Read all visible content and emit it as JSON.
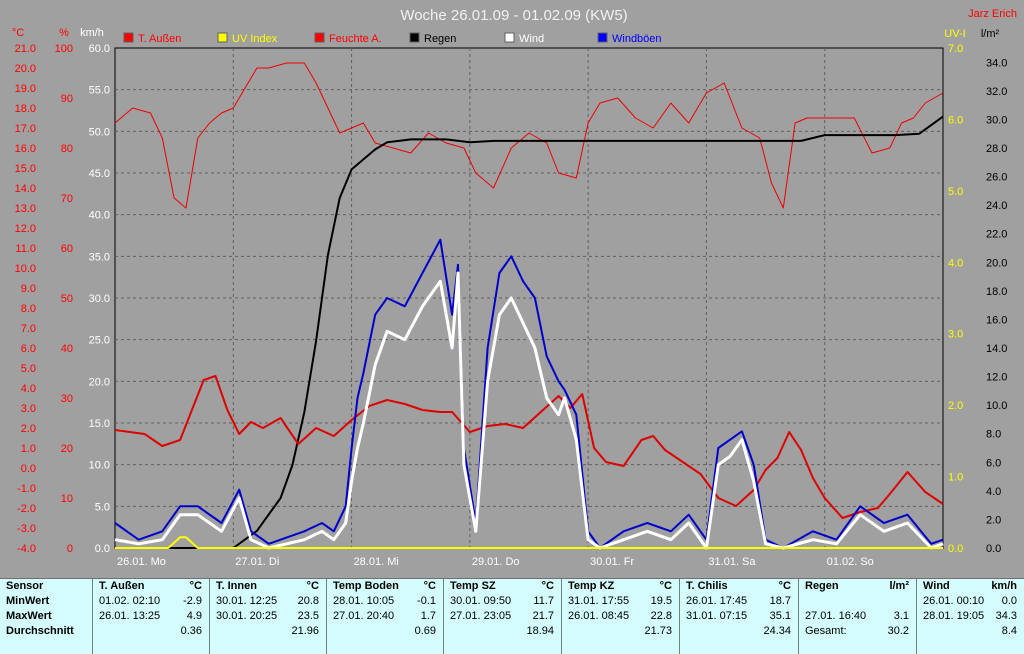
{
  "title": "Woche 26.01.09 - 01.02.09 (KW5)",
  "author": "Jarz Erich",
  "axis_units": {
    "temp": "°C",
    "humidity": "%",
    "wind": "km/h",
    "uv": "UV-I",
    "rain": "l/m²"
  },
  "legend": [
    {
      "label": "T. Außen",
      "color": "#ff0000"
    },
    {
      "label": "UV Index",
      "color": "#ffff00"
    },
    {
      "label": "Feuchte A.",
      "color": "#ff0000"
    },
    {
      "label": "Regen",
      "color": "#000000"
    },
    {
      "label": "Wind",
      "color": "#ffffff"
    },
    {
      "label": "Windböen",
      "color": "#0000ff"
    }
  ],
  "colors": {
    "temp": "#dd0000",
    "humidity": "#ee0000",
    "rain": "#000000",
    "wind": "#ffffff",
    "gust": "#0000cc",
    "uv": "#ffff00",
    "bg": "#a0a0a0",
    "table": "#d4fcfc"
  },
  "chart_data": {
    "type": "line",
    "title": "Woche 26.01.09 - 01.02.09 (KW5)",
    "x_ticks": [
      "26.01. Mo",
      "27.01. Di",
      "28.01. Mi",
      "29.01. Do",
      "30.01. Fr",
      "31.01. Sa",
      "01.02. So"
    ],
    "x_range_days": [
      0,
      7
    ],
    "axes": {
      "temp_c": {
        "range": [
          -4.0,
          21.0
        ],
        "ticks": [
          "21.0",
          "20.0",
          "19.0",
          "18.0",
          "17.0",
          "16.0",
          "15.0",
          "14.0",
          "13.0",
          "12.0",
          "11.0",
          "10.0",
          "9.0",
          "8.0",
          "7.0",
          "6.0",
          "5.0",
          "4.0",
          "3.0",
          "2.0",
          "1.0",
          "0.0",
          "-1.0",
          "-2.0",
          "-3.0",
          "-4.0"
        ]
      },
      "humidity_pct": {
        "range": [
          0,
          100
        ],
        "ticks": [
          "100",
          "90",
          "80",
          "70",
          "60",
          "50",
          "40",
          "30",
          "20",
          "10",
          "0"
        ]
      },
      "wind_kmh": {
        "range": [
          0.0,
          60.0
        ],
        "ticks": [
          "60.0",
          "55.0",
          "50.0",
          "45.0",
          "40.0",
          "35.0",
          "30.0",
          "25.0",
          "20.0",
          "15.0",
          "10.0",
          "5.0",
          "0.0"
        ]
      },
      "uv_index": {
        "range": [
          0.0,
          7.0
        ],
        "ticks": [
          "7.0",
          "6.0",
          "5.0",
          "4.0",
          "3.0",
          "2.0",
          "1.0",
          "0.0"
        ]
      },
      "rain_lm2": {
        "range": [
          0.0,
          35.0
        ],
        "ticks": [
          "34.0",
          "32.0",
          "30.0",
          "28.0",
          "26.0",
          "24.0",
          "22.0",
          "20.0",
          "18.0",
          "16.0",
          "14.0",
          "12.0",
          "10.0",
          "8.0",
          "6.0",
          "4.0",
          "2.0",
          "0.0"
        ]
      }
    },
    "series": [
      {
        "name": "T. Außen",
        "axis": "temp_c",
        "x": [
          0,
          0.25,
          0.4,
          0.55,
          0.65,
          0.75,
          0.85,
          0.95,
          1.05,
          1.15,
          1.25,
          1.4,
          1.55,
          1.7,
          1.85,
          2.0,
          2.15,
          2.3,
          2.45,
          2.6,
          2.75,
          2.85,
          3.0,
          3.15,
          3.3,
          3.45,
          3.6,
          3.75,
          3.85,
          3.95,
          4.05,
          4.15,
          4.3,
          4.45,
          4.55,
          4.65,
          4.8,
          4.95,
          5.1,
          5.25,
          5.4,
          5.5,
          5.6,
          5.7,
          5.8,
          5.9,
          6.0,
          6.15,
          6.3,
          6.45,
          6.55,
          6.7,
          6.85,
          7.0
        ],
        "y": [
          1.9,
          1.7,
          1.1,
          1.4,
          2.9,
          4.4,
          4.6,
          2.9,
          1.7,
          2.3,
          2.0,
          2.5,
          1.2,
          2.0,
          1.6,
          2.4,
          3.1,
          3.4,
          3.2,
          2.9,
          2.8,
          2.8,
          1.8,
          2.1,
          2.2,
          2.0,
          2.8,
          3.6,
          3.0,
          3.7,
          1.0,
          0.3,
          0.1,
          1.4,
          1.6,
          0.9,
          0.3,
          -0.3,
          -1.5,
          -1.9,
          -1.1,
          -0.1,
          0.5,
          1.8,
          0.9,
          -0.5,
          -1.5,
          -2.5,
          -2.2,
          -2.0,
          -1.3,
          -0.2,
          -1.2,
          -1.8
        ]
      },
      {
        "name": "Feuchte A.",
        "axis": "humidity_pct",
        "x": [
          0,
          0.15,
          0.3,
          0.4,
          0.5,
          0.6,
          0.7,
          0.8,
          0.9,
          1.0,
          1.1,
          1.2,
          1.3,
          1.45,
          1.6,
          1.7,
          1.8,
          1.9,
          2.0,
          2.1,
          2.2,
          2.35,
          2.5,
          2.65,
          2.8,
          2.95,
          3.05,
          3.2,
          3.35,
          3.5,
          3.65,
          3.75,
          3.9,
          4.0,
          4.1,
          4.25,
          4.4,
          4.55,
          4.7,
          4.85,
          5.0,
          5.15,
          5.3,
          5.45,
          5.55,
          5.65,
          5.75,
          5.85,
          5.95,
          6.1,
          6.25,
          6.4,
          6.55,
          6.65,
          6.75,
          6.85,
          7.0
        ],
        "y": [
          85,
          88,
          87,
          82,
          70,
          68,
          82,
          85,
          87,
          88,
          92,
          96,
          96,
          97,
          97,
          93,
          88,
          83,
          84,
          85,
          81,
          80,
          79,
          83,
          81,
          80,
          75,
          72,
          80,
          83,
          81,
          75,
          74,
          85,
          89,
          90,
          86,
          84,
          89,
          85,
          91,
          93,
          84,
          82,
          73,
          68,
          85,
          86,
          86,
          86,
          86,
          79,
          80,
          85,
          86,
          89,
          91
        ]
      },
      {
        "name": "Regen",
        "axis": "rain_lm2",
        "x": [
          0,
          1.0,
          1.2,
          1.4,
          1.5,
          1.6,
          1.7,
          1.8,
          1.9,
          2.0,
          2.1,
          2.2,
          2.3,
          2.4,
          2.5,
          2.8,
          3.0,
          3.2,
          4.0,
          5.0,
          5.8,
          6.0,
          6.2,
          6.6,
          6.8,
          7.0
        ],
        "y": [
          0,
          0,
          1.2,
          3.5,
          5.8,
          9.5,
          14.5,
          20.5,
          24.5,
          26.5,
          27.2,
          27.9,
          28.4,
          28.5,
          28.6,
          28.6,
          28.4,
          28.5,
          28.5,
          28.5,
          28.5,
          28.9,
          28.9,
          28.9,
          29.0,
          30.2
        ]
      },
      {
        "name": "Wind",
        "axis": "wind_kmh",
        "x": [
          0,
          0.2,
          0.4,
          0.55,
          0.7,
          0.9,
          1.05,
          1.15,
          1.3,
          1.6,
          1.75,
          1.85,
          1.95,
          2.0,
          2.05,
          2.1,
          2.2,
          2.3,
          2.45,
          2.6,
          2.75,
          2.85,
          2.9,
          2.95,
          3.05,
          3.15,
          3.25,
          3.35,
          3.45,
          3.55,
          3.65,
          3.75,
          3.8,
          3.9,
          4.0,
          4.1,
          4.3,
          4.5,
          4.7,
          4.85,
          5.0,
          5.1,
          5.2,
          5.3,
          5.4,
          5.5,
          5.65,
          5.9,
          6.1,
          6.3,
          6.5,
          6.7,
          6.9,
          7.0
        ],
        "y": [
          1,
          0.5,
          1,
          4,
          4,
          2,
          6,
          1,
          0,
          1,
          2,
          1,
          3,
          8,
          12,
          15,
          22,
          26,
          25,
          29,
          32,
          24,
          33,
          10,
          2,
          20,
          28,
          30,
          27,
          24,
          18,
          16,
          18,
          13,
          1,
          0,
          1,
          2,
          1,
          3,
          0,
          10,
          11,
          13,
          8,
          0.5,
          0,
          1,
          0.5,
          4,
          2,
          3,
          0,
          0.5
        ]
      },
      {
        "name": "Windböen",
        "axis": "wind_kmh",
        "x": [
          0,
          0.2,
          0.4,
          0.55,
          0.7,
          0.9,
          1.05,
          1.15,
          1.3,
          1.6,
          1.75,
          1.85,
          1.95,
          2.0,
          2.05,
          2.1,
          2.2,
          2.3,
          2.45,
          2.6,
          2.75,
          2.85,
          2.9,
          2.95,
          3.05,
          3.15,
          3.25,
          3.35,
          3.45,
          3.55,
          3.65,
          3.75,
          3.8,
          3.9,
          4.0,
          4.1,
          4.3,
          4.5,
          4.7,
          4.85,
          5.0,
          5.1,
          5.2,
          5.3,
          5.4,
          5.5,
          5.65,
          5.9,
          6.1,
          6.3,
          6.5,
          6.7,
          6.9,
          7.0
        ],
        "y": [
          3,
          1,
          2,
          5,
          5,
          3,
          7,
          2,
          0.5,
          2,
          3,
          2,
          5,
          12,
          18,
          21,
          28,
          30,
          29,
          33,
          37,
          28,
          34,
          12,
          3,
          24,
          33,
          35,
          32,
          30,
          23,
          20,
          19,
          16,
          2,
          0,
          2,
          3,
          2,
          4,
          1,
          12,
          13,
          14,
          10,
          1,
          0,
          2,
          1,
          5,
          3,
          4,
          0.5,
          1
        ]
      },
      {
        "name": "UV Index",
        "axis": "uv_index",
        "x": [
          0,
          0.45,
          0.55,
          0.6,
          0.7,
          7.0
        ],
        "y": [
          0,
          0,
          0.15,
          0.15,
          0,
          0
        ]
      }
    ]
  },
  "table": {
    "first": {
      "r0": "Sensor",
      "r1": "MinWert",
      "r2": "MaxWert",
      "r3": "Durchschnitt"
    },
    "columns": [
      {
        "name": "T. Außen",
        "unit": "°C",
        "min_t": "01.02.  02:10",
        "min_v": "-2.9",
        "max_t": "26.01.  13:25",
        "max_v": "4.9",
        "avg": "0.36"
      },
      {
        "name": "T. Innen",
        "unit": "°C",
        "min_t": "30.01.  12:25",
        "min_v": "20.8",
        "max_t": "30.01.  20:25",
        "max_v": "23.5",
        "avg": "21.96"
      },
      {
        "name": "Temp Boden",
        "unit": "°C",
        "min_t": "28.01.  10:05",
        "min_v": "-0.1",
        "max_t": "27.01.  20:40",
        "max_v": "1.7",
        "avg": "0.69"
      },
      {
        "name": "Temp SZ",
        "unit": "°C",
        "min_t": "30.01.  09:50",
        "min_v": "11.7",
        "max_t": "27.01.  23:05",
        "max_v": "21.7",
        "avg": "18.94"
      },
      {
        "name": "Temp KZ",
        "unit": "°C",
        "min_t": "31.01.  17:55",
        "min_v": "19.5",
        "max_t": "26.01.  08:45",
        "max_v": "22.8",
        "avg": "21.73"
      },
      {
        "name": "T. Chilis",
        "unit": "°C",
        "min_t": "26.01.  17:45",
        "min_v": "18.7",
        "max_t": "31.01.  07:15",
        "max_v": "35.1",
        "avg": "24.34"
      },
      {
        "name": "Regen",
        "unit": "l/m²",
        "min_t": "",
        "min_v": "",
        "max_t": "27.01.  16:40",
        "max_v": "3.1",
        "avg_label": "Gesamt:",
        "avg": "30.2"
      },
      {
        "name": "Wind",
        "unit": "km/h",
        "min_t": "26.01.  00:10",
        "min_v": "0.0",
        "max_t": "28.01.  19:05",
        "max_v": "34.3",
        "avg": "8.4"
      }
    ]
  }
}
